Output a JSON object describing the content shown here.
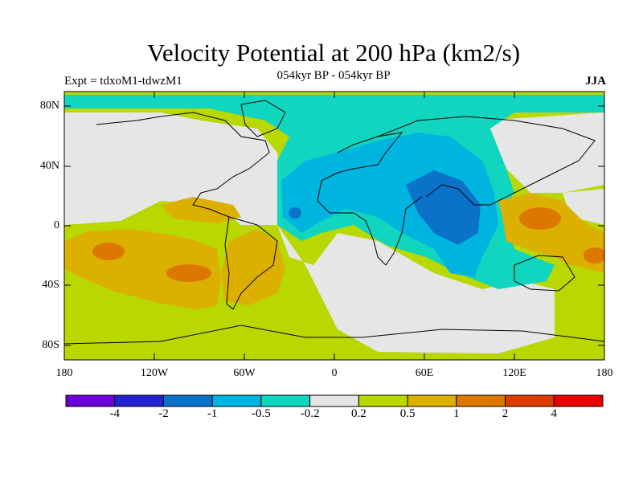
{
  "title": "Velocity Potential at 200 hPa (km2/s)",
  "subtitle": "054kyr BP - 054kyr BP",
  "experiment": "Expt = tdxoM1-tdwzM1",
  "season": "JJA",
  "lat_ticks": [
    "80N",
    "40N",
    "0",
    "40S",
    "80S"
  ],
  "lon_ticks": [
    "180",
    "120W",
    "60W",
    "0",
    "60E",
    "120E",
    "180"
  ],
  "colorbar": {
    "colors": [
      "#6a00d8",
      "#2222d0",
      "#0a72c8",
      "#00b4e0",
      "#10d6c0",
      "#e6e6e6",
      "#b8d800",
      "#dcb000",
      "#dc7800",
      "#dc3c00",
      "#e80000"
    ],
    "labels": [
      "-4",
      "-2",
      "-1",
      "-0.5",
      "-0.2",
      "0.2",
      "0.5",
      "1",
      "2",
      "4"
    ]
  }
}
